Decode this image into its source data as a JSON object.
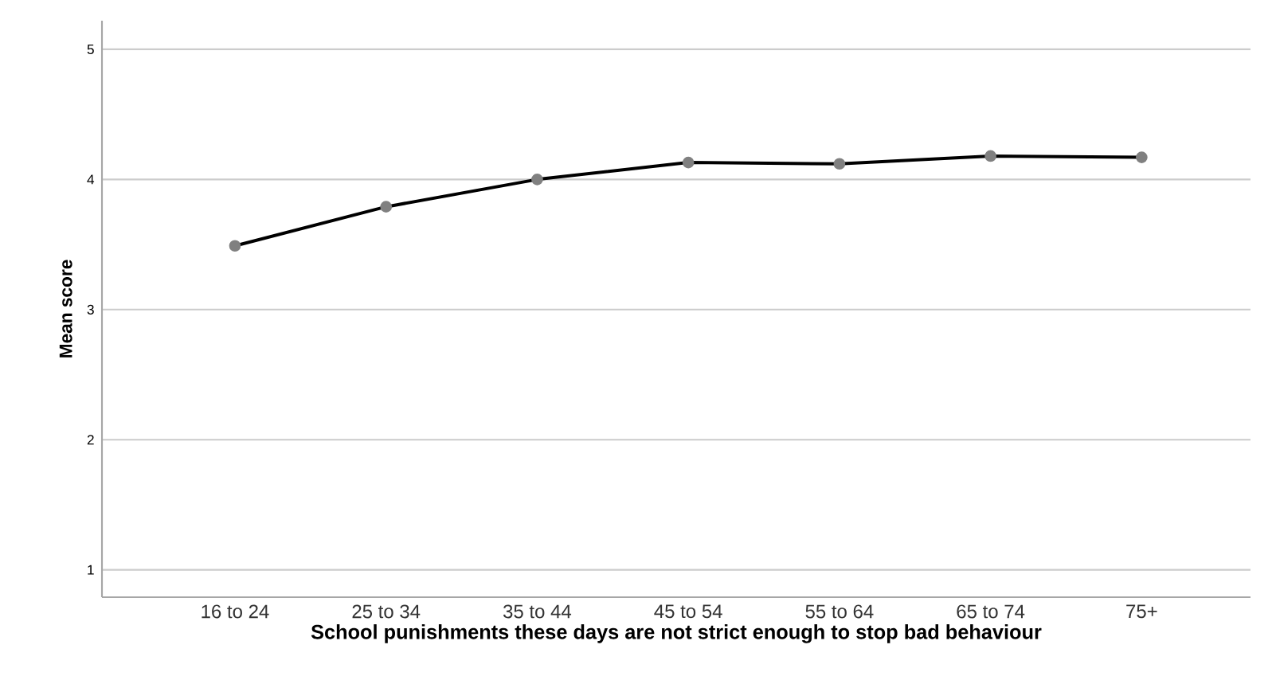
{
  "chart_data": {
    "type": "line",
    "xlabel": "School punishments these days are not strict enough to stop bad behaviour",
    "ylabel": "Mean score",
    "categories": [
      "16 to 24",
      "25 to 34",
      "35 to 44",
      "45 to 54",
      "55 to 64",
      "65 to 74",
      "75+"
    ],
    "series": [
      {
        "color": "#000000",
        "values": [
          3.49,
          3.79,
          4.0,
          4.13,
          4.12,
          4.18,
          4.17
        ]
      }
    ],
    "ylim": [
      0.79,
      5.22
    ],
    "yticks": [
      1,
      2,
      3,
      4,
      5
    ],
    "grid": "y",
    "marker": "circle",
    "line_style": "solid"
  }
}
